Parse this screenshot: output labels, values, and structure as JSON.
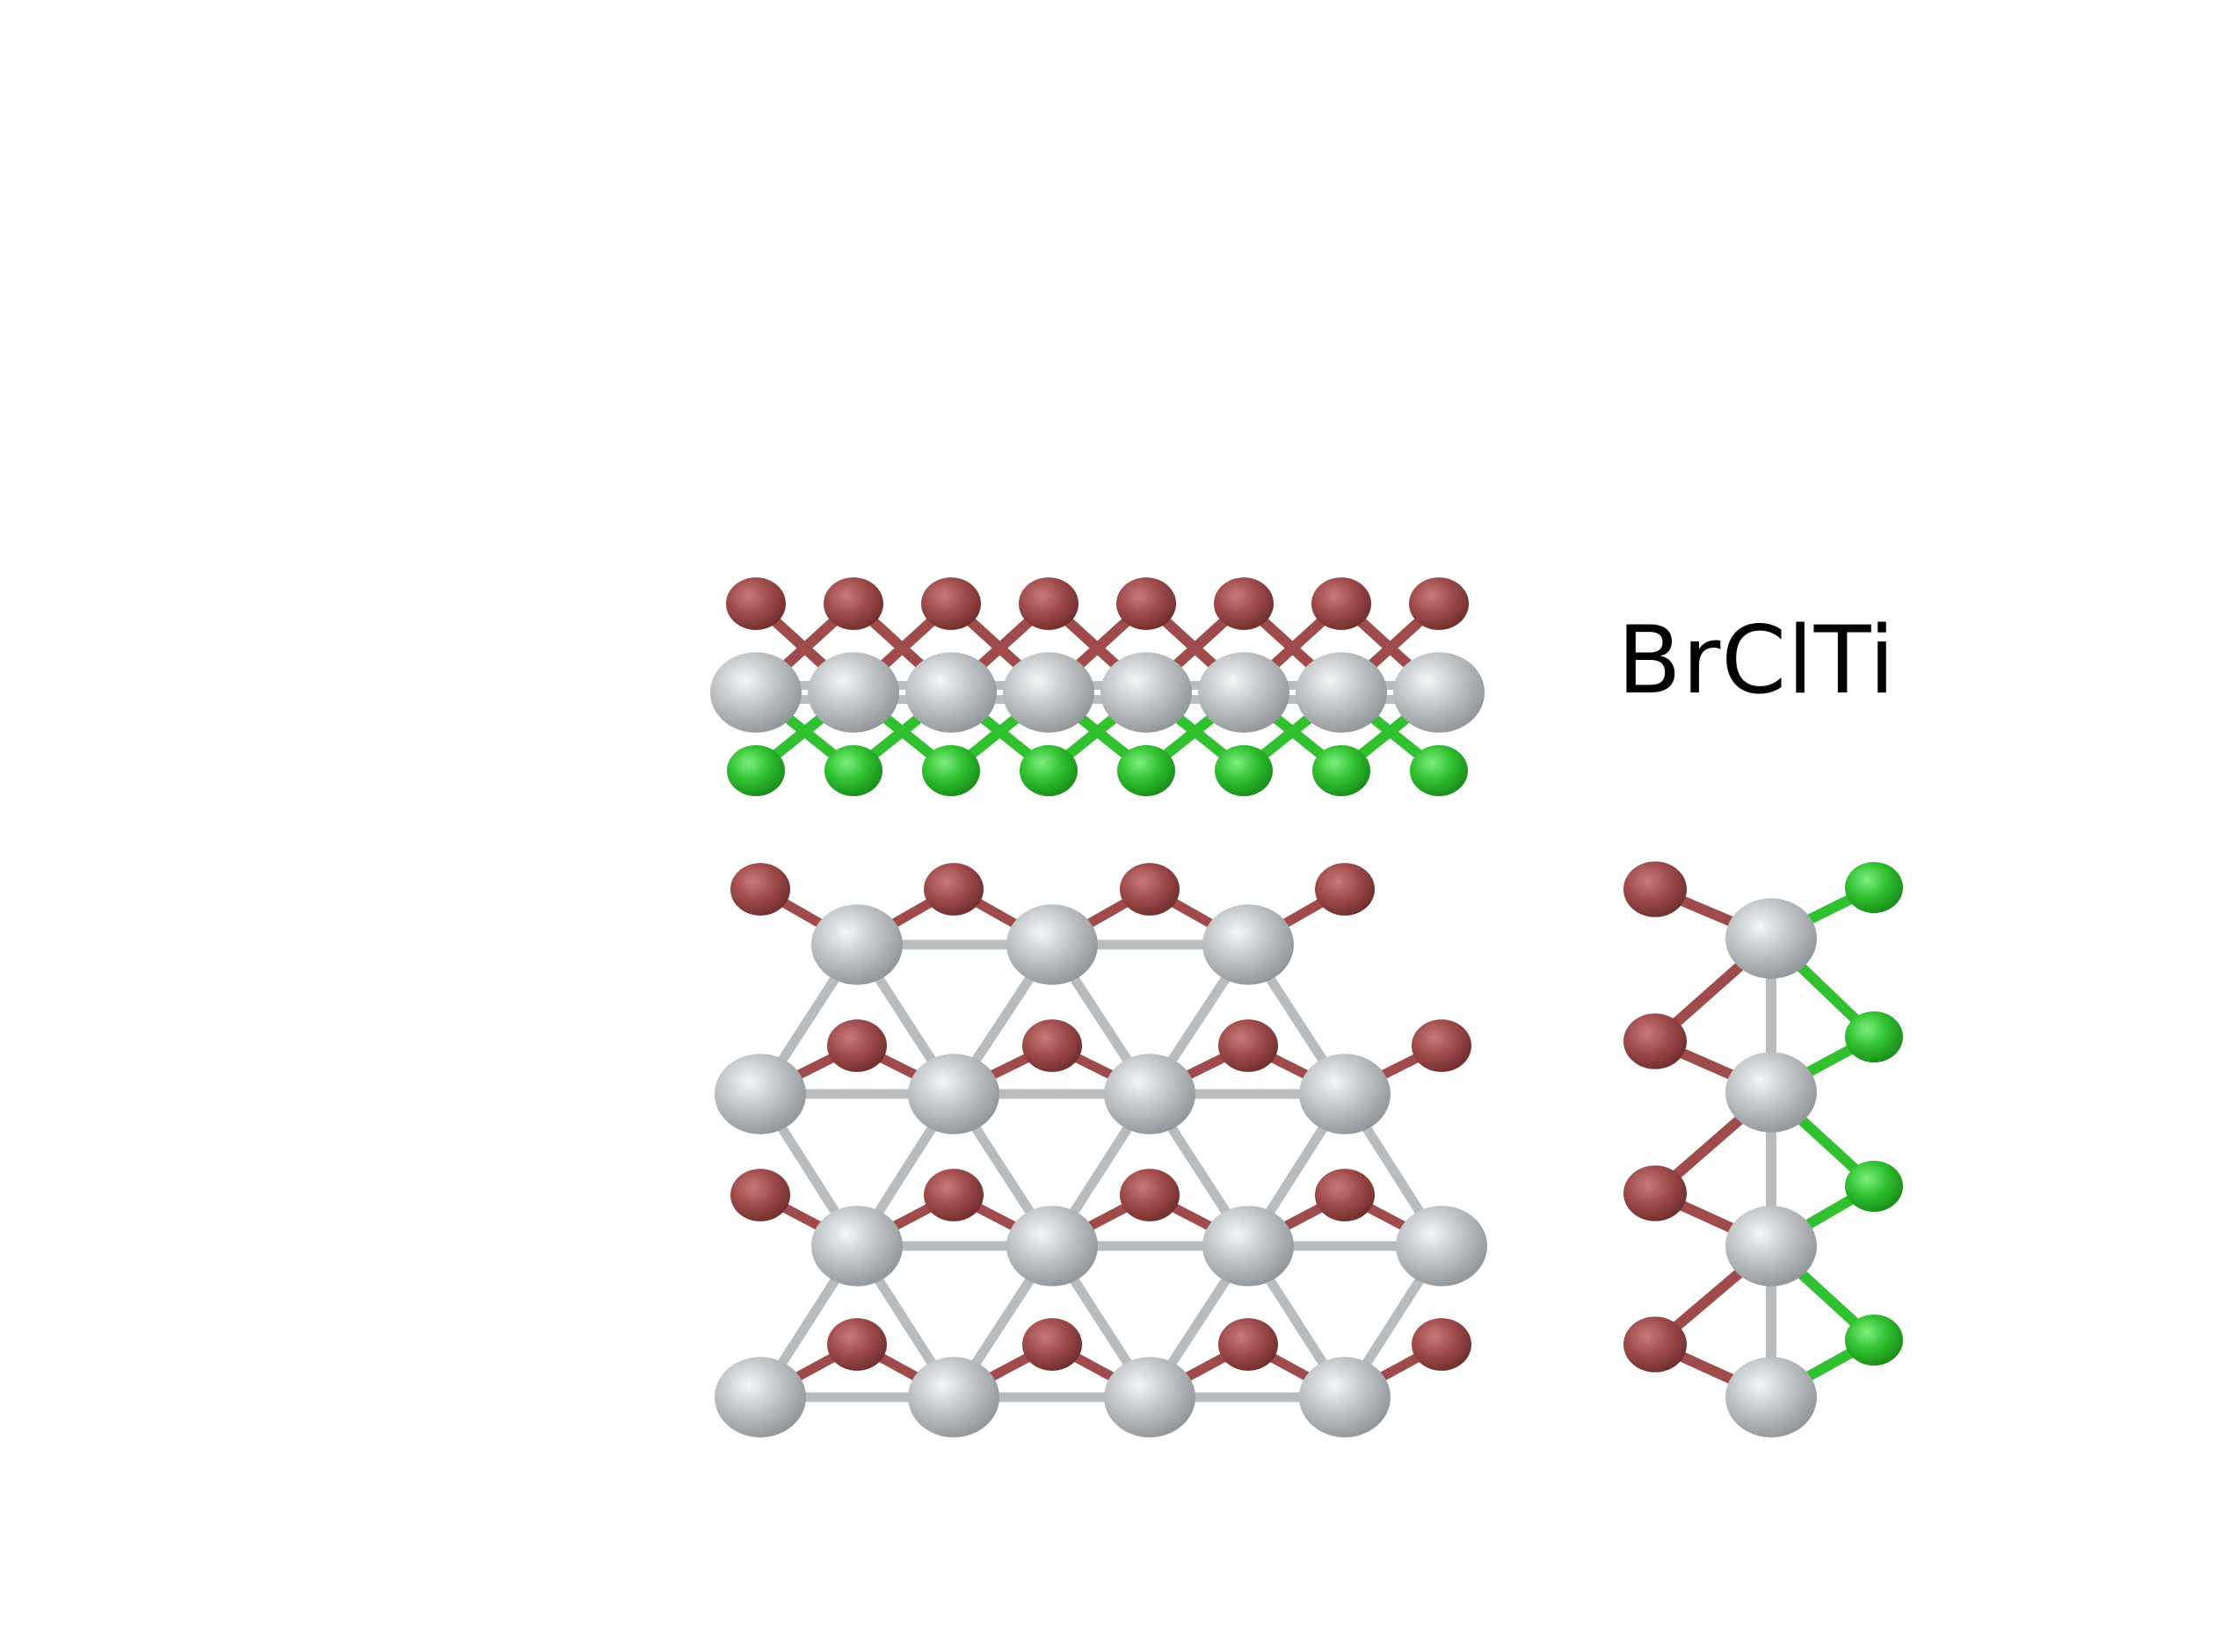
{
  "figure": {
    "formula": "BrClTi",
    "colors": {
      "Ti": "#b9bec2",
      "Br": "#a04b4b",
      "Cl": "#30c030",
      "bond_gray": "#b8bcbe",
      "background": "#ffffff"
    },
    "panels": [
      {
        "name": "side-view-a",
        "view": "side"
      },
      {
        "name": "top-view",
        "view": "top"
      },
      {
        "name": "side-view-b",
        "view": "side"
      }
    ]
  }
}
